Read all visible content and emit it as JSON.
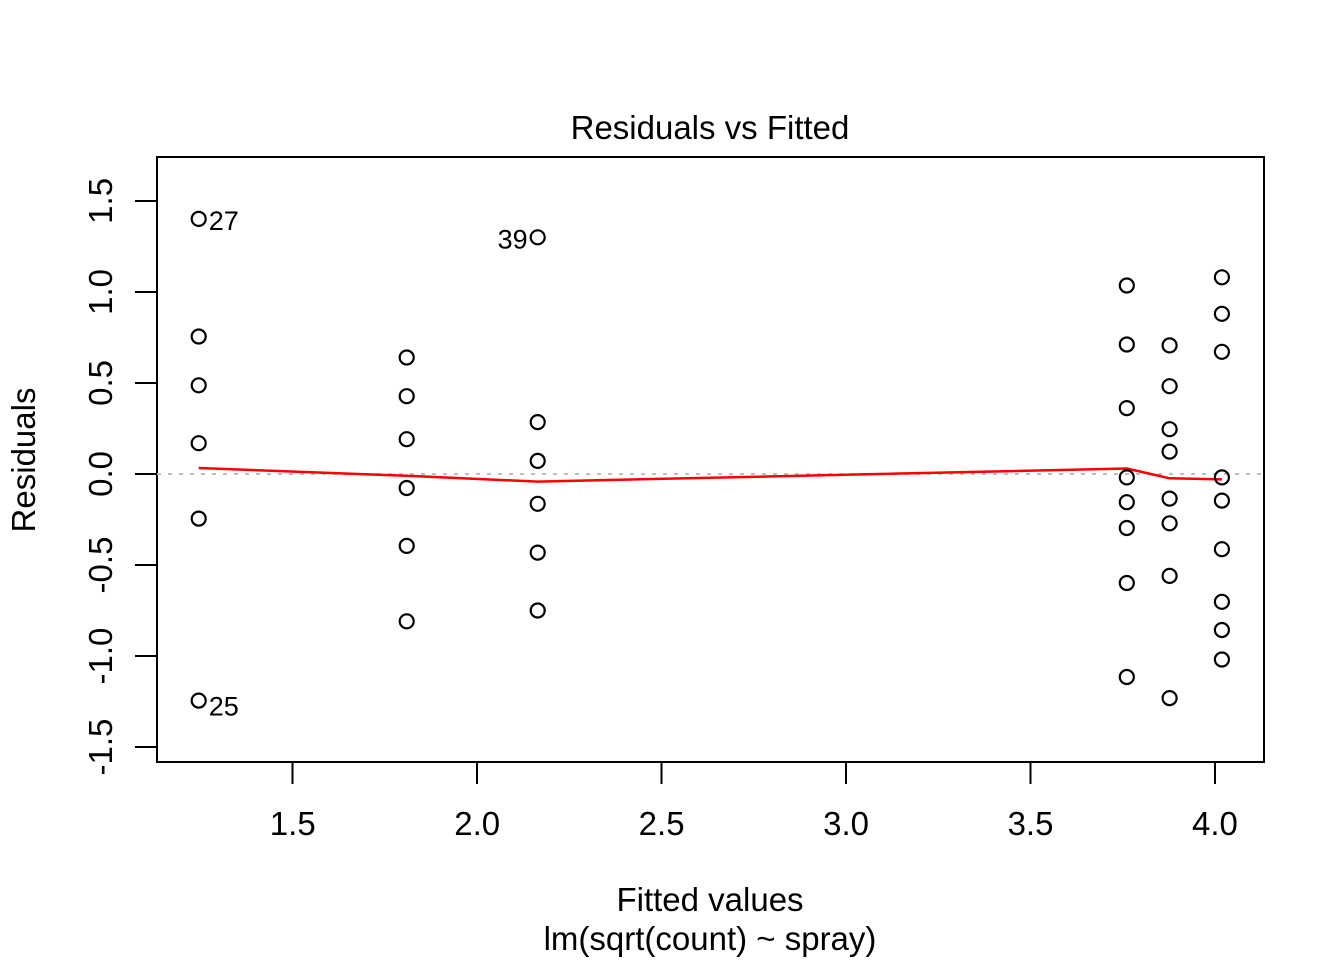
{
  "chart_data": {
    "type": "scatter",
    "title": "Residuals vs Fitted",
    "xlabel": "Fitted values",
    "xlabel_sub": "lm(sqrt(count) ~ spray)",
    "ylabel": "Residuals",
    "xlim": [
      1.132,
      4.133
    ],
    "ylim": [
      -1.582,
      1.741
    ],
    "x_ticks": [
      1.5,
      2.0,
      2.5,
      3.0,
      3.5,
      4.0
    ],
    "x_tick_labels": [
      "1.5",
      "2.0",
      "2.5",
      "3.0",
      "3.5",
      "4.0"
    ],
    "y_ticks": [
      -1.5,
      -1.0,
      -0.5,
      0.0,
      0.5,
      1.0,
      1.5
    ],
    "y_tick_labels": [
      "-1.5",
      "-1.0",
      "-0.5",
      "0.0",
      "0.5",
      "1.0",
      "1.5"
    ],
    "grid": false,
    "legend": null,
    "colors": {
      "points": "#000000",
      "smoother": "#FF0000",
      "zero_line": "#BEBEBE",
      "text": "#000000",
      "background": "#FFFFFF"
    },
    "zero_line": {
      "y": 0.0,
      "style": "dotted"
    },
    "point_style": {
      "shape": "open-circle",
      "radius_px": 7
    },
    "groups": [
      {
        "fitted": 1.245,
        "residuals": [
          1.401,
          0.755,
          0.487,
          0.169,
          -0.245,
          -1.245
        ]
      },
      {
        "fitted": 1.809,
        "residuals": [
          0.64,
          0.427,
          0.191,
          -0.077,
          -0.395,
          -0.809
        ]
      },
      {
        "fitted": 2.164,
        "residuals": [
          1.3,
          0.285,
          0.072,
          -0.164,
          -0.432,
          -0.75
        ]
      },
      {
        "fitted": 3.761,
        "residuals": [
          1.035,
          0.711,
          0.362,
          -0.019,
          -0.155,
          -0.297,
          -0.599,
          -1.115
        ]
      },
      {
        "fitted": 3.877,
        "residuals": [
          0.706,
          0.482,
          0.246,
          0.123,
          -0.135,
          -0.271,
          -0.56,
          -1.231
        ]
      },
      {
        "fitted": 4.019,
        "residuals": [
          1.08,
          0.88,
          0.671,
          -0.019,
          -0.146,
          -0.413,
          -0.702,
          -0.857,
          -1.019
        ]
      }
    ],
    "labeled_points": [
      {
        "label": "27",
        "x": 1.245,
        "y": 1.401,
        "side": "right"
      },
      {
        "label": "39",
        "x": 2.164,
        "y": 1.3,
        "side": "left"
      },
      {
        "label": "25",
        "x": 1.245,
        "y": -1.245,
        "side": "right"
      }
    ],
    "smoother": {
      "points": [
        [
          1.245,
          0.033
        ],
        [
          1.809,
          -0.01
        ],
        [
          2.164,
          -0.042
        ],
        [
          3.761,
          0.03
        ],
        [
          3.877,
          -0.024
        ],
        [
          4.019,
          -0.03
        ]
      ]
    }
  }
}
